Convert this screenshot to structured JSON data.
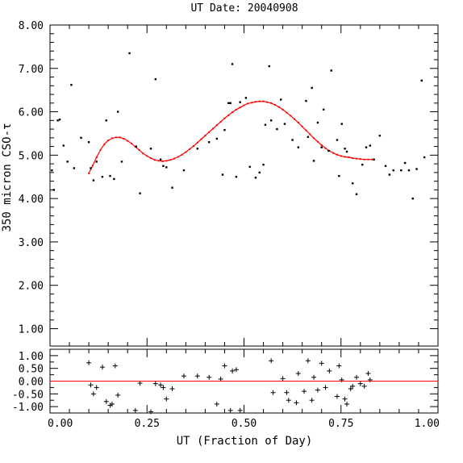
{
  "chart_data": [
    {
      "type": "scatter",
      "title": "UT Date: 20040908",
      "xlabel": "",
      "ylabel": "350 micron CSO-τ",
      "xlim": [
        0.0,
        1.0
      ],
      "ylim": [
        0.6,
        8.0
      ],
      "yticks": [
        "1.00",
        "2.00",
        "3.00",
        "4.00",
        "5.00",
        "6.00",
        "7.00",
        "8.00"
      ],
      "series": [
        {
          "role": "measurements",
          "marker": "dot",
          "color": "#000000",
          "x": [
            0.005,
            0.01,
            0.02,
            0.025,
            0.035,
            0.045,
            0.055,
            0.062,
            0.08,
            0.1,
            0.105,
            0.112,
            0.12,
            0.135,
            0.145,
            0.155,
            0.165,
            0.175,
            0.185,
            0.205,
            0.222,
            0.232,
            0.26,
            0.272,
            0.285,
            0.292,
            0.3,
            0.315,
            0.345,
            0.38,
            0.41,
            0.43,
            0.445,
            0.45,
            0.46,
            0.465,
            0.47,
            0.48,
            0.49,
            0.505,
            0.515,
            0.53,
            0.54,
            0.55,
            0.555,
            0.565,
            0.57,
            0.585,
            0.595,
            0.605,
            0.625,
            0.64,
            0.66,
            0.665,
            0.675,
            0.68,
            0.69,
            0.7,
            0.705,
            0.718,
            0.725,
            0.74,
            0.745,
            0.752,
            0.76,
            0.765,
            0.78,
            0.79,
            0.805,
            0.815,
            0.825,
            0.835,
            0.85,
            0.865,
            0.875,
            0.885,
            0.905,
            0.915,
            0.925,
            0.935,
            0.945,
            0.958,
            0.965
          ],
          "y": [
            4.65,
            4.2,
            5.8,
            5.82,
            5.22,
            4.85,
            6.62,
            4.7,
            5.4,
            5.3,
            4.7,
            4.42,
            4.85,
            4.5,
            5.8,
            4.52,
            4.45,
            6.0,
            4.85,
            7.35,
            5.2,
            4.12,
            5.15,
            6.75,
            4.9,
            4.75,
            4.72,
            4.25,
            4.65,
            5.15,
            5.3,
            5.38,
            4.55,
            5.58,
            6.2,
            6.2,
            7.1,
            4.5,
            6.22,
            6.32,
            4.73,
            4.48,
            4.6,
            4.78,
            5.7,
            7.05,
            5.8,
            5.6,
            6.28,
            5.72,
            5.35,
            5.18,
            6.25,
            5.42,
            6.55,
            4.87,
            5.75,
            5.18,
            6.05,
            5.1,
            6.95,
            5.35,
            4.52,
            5.72,
            5.15,
            5.08,
            4.35,
            4.1,
            4.78,
            5.18,
            5.22,
            4.9,
            5.45,
            4.75,
            4.55,
            4.65,
            4.65,
            4.82,
            4.65,
            4.0,
            4.68,
            6.72,
            4.95
          ]
        },
        {
          "role": "polynomial fit",
          "marker": "line",
          "color": "#ff0000",
          "x": [
            0.1,
            0.11,
            0.12,
            0.13,
            0.14,
            0.15,
            0.16,
            0.17,
            0.18,
            0.19,
            0.2,
            0.21,
            0.22,
            0.23,
            0.24,
            0.25,
            0.26,
            0.27,
            0.28,
            0.29,
            0.3,
            0.31,
            0.32,
            0.33,
            0.34,
            0.35,
            0.36,
            0.37,
            0.38,
            0.39,
            0.4,
            0.41,
            0.42,
            0.43,
            0.44,
            0.45,
            0.46,
            0.47,
            0.48,
            0.49,
            0.5,
            0.51,
            0.52,
            0.53,
            0.54,
            0.55,
            0.56,
            0.57,
            0.58,
            0.59,
            0.6,
            0.61,
            0.62,
            0.63,
            0.64,
            0.65,
            0.66,
            0.67,
            0.68,
            0.69,
            0.7,
            0.71,
            0.72,
            0.73,
            0.74,
            0.75,
            0.76,
            0.77,
            0.78,
            0.79,
            0.8,
            0.81,
            0.82,
            0.83
          ],
          "y": [
            4.58,
            4.76,
            4.95,
            5.12,
            5.25,
            5.34,
            5.39,
            5.41,
            5.41,
            5.38,
            5.33,
            5.27,
            5.19,
            5.12,
            5.04,
            4.98,
            4.93,
            4.89,
            4.87,
            4.86,
            4.87,
            4.89,
            4.92,
            4.96,
            5.01,
            5.07,
            5.14,
            5.21,
            5.29,
            5.37,
            5.45,
            5.53,
            5.61,
            5.69,
            5.77,
            5.85,
            5.92,
            5.99,
            6.05,
            6.1,
            6.15,
            6.19,
            6.21,
            6.23,
            6.24,
            6.24,
            6.22,
            6.2,
            6.16,
            6.11,
            6.05,
            5.98,
            5.91,
            5.83,
            5.75,
            5.66,
            5.57,
            5.48,
            5.39,
            5.31,
            5.23,
            5.16,
            5.1,
            5.05,
            5.01,
            4.98,
            4.96,
            4.95,
            4.93,
            4.92,
            4.91,
            4.9,
            4.9,
            4.9
          ]
        }
      ]
    },
    {
      "type": "scatter",
      "title": "",
      "xlabel": "UT (Fraction of Day)",
      "ylabel": "",
      "xlim": [
        0.0,
        1.0
      ],
      "ylim": [
        -1.25,
        1.25
      ],
      "xticks": [
        "0.00",
        "0.25",
        "0.50",
        "0.75",
        "1.00"
      ],
      "yticks": [
        "-1.00",
        "-0.50",
        "0.00",
        "0.50",
        "1.00"
      ],
      "zero_line_color": "#ff0000",
      "series": [
        {
          "role": "residuals",
          "marker": "plus",
          "color": "#000000",
          "x": [
            0.1,
            0.105,
            0.112,
            0.12,
            0.135,
            0.145,
            0.155,
            0.16,
            0.168,
            0.175,
            0.22,
            0.232,
            0.26,
            0.272,
            0.285,
            0.292,
            0.3,
            0.315,
            0.345,
            0.38,
            0.41,
            0.43,
            0.44,
            0.45,
            0.465,
            0.47,
            0.48,
            0.49,
            0.57,
            0.575,
            0.6,
            0.61,
            0.615,
            0.635,
            0.64,
            0.655,
            0.665,
            0.675,
            0.68,
            0.69,
            0.7,
            0.71,
            0.72,
            0.74,
            0.745,
            0.752,
            0.76,
            0.765,
            0.775,
            0.78,
            0.79,
            0.8,
            0.81,
            0.82,
            0.825
          ],
          "y": [
            0.72,
            -0.15,
            -0.5,
            -0.25,
            0.55,
            -0.8,
            -0.95,
            -0.9,
            0.6,
            -0.55,
            -1.15,
            -0.08,
            -1.2,
            -0.1,
            -0.15,
            -0.25,
            -0.7,
            -0.3,
            0.2,
            0.2,
            0.15,
            -0.9,
            0.08,
            0.6,
            -1.15,
            0.4,
            0.45,
            -1.15,
            0.8,
            -0.45,
            0.1,
            -0.45,
            -0.75,
            -0.85,
            0.3,
            -0.4,
            0.8,
            -0.75,
            0.15,
            -0.35,
            0.7,
            -0.25,
            0.4,
            -0.6,
            0.6,
            0.05,
            -0.7,
            -0.9,
            -0.3,
            -0.2,
            0.15,
            -0.1,
            -0.2,
            0.3,
            0.05
          ]
        }
      ]
    }
  ]
}
